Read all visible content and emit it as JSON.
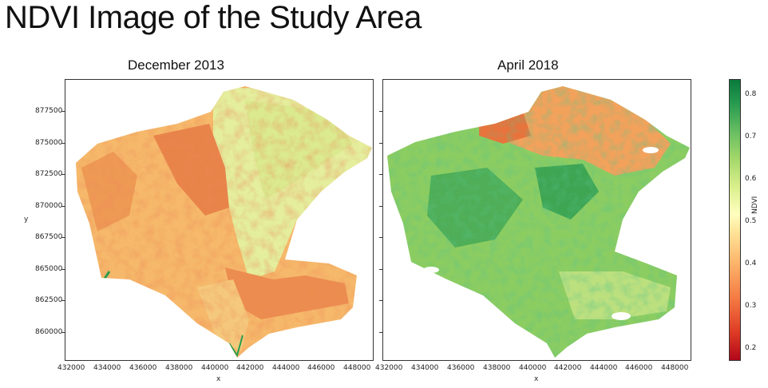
{
  "slide_title": "NDVI Image of the Study Area",
  "panels": [
    {
      "title": "December 2013"
    },
    {
      "title": "April 2018"
    }
  ],
  "axes": {
    "xlabel": "x",
    "ylabel": "y",
    "x_ticks": [
      "432000",
      "434000",
      "436000",
      "438000",
      "440000",
      "442000",
      "444000",
      "446000",
      "448000"
    ],
    "y_ticks": [
      "877500",
      "875000",
      "872500",
      "870000",
      "867500",
      "865000",
      "862500",
      "860000"
    ]
  },
  "colorbar": {
    "label": "NDVI",
    "ticks": [
      "0.8",
      "0.7",
      "0.6",
      "0.5",
      "0.4",
      "0.3",
      "0.2"
    ],
    "colormap": "RdYlGn"
  },
  "colors": {
    "dec2013_base": "#f6b96b",
    "dec2013_dark": "#e25a2e",
    "dec2013_light": "#eaf0a0",
    "apr2018_base": "#8ccd62",
    "apr2018_dark": "#1f9a4d",
    "apr2018_warm": "#f39a55"
  }
}
